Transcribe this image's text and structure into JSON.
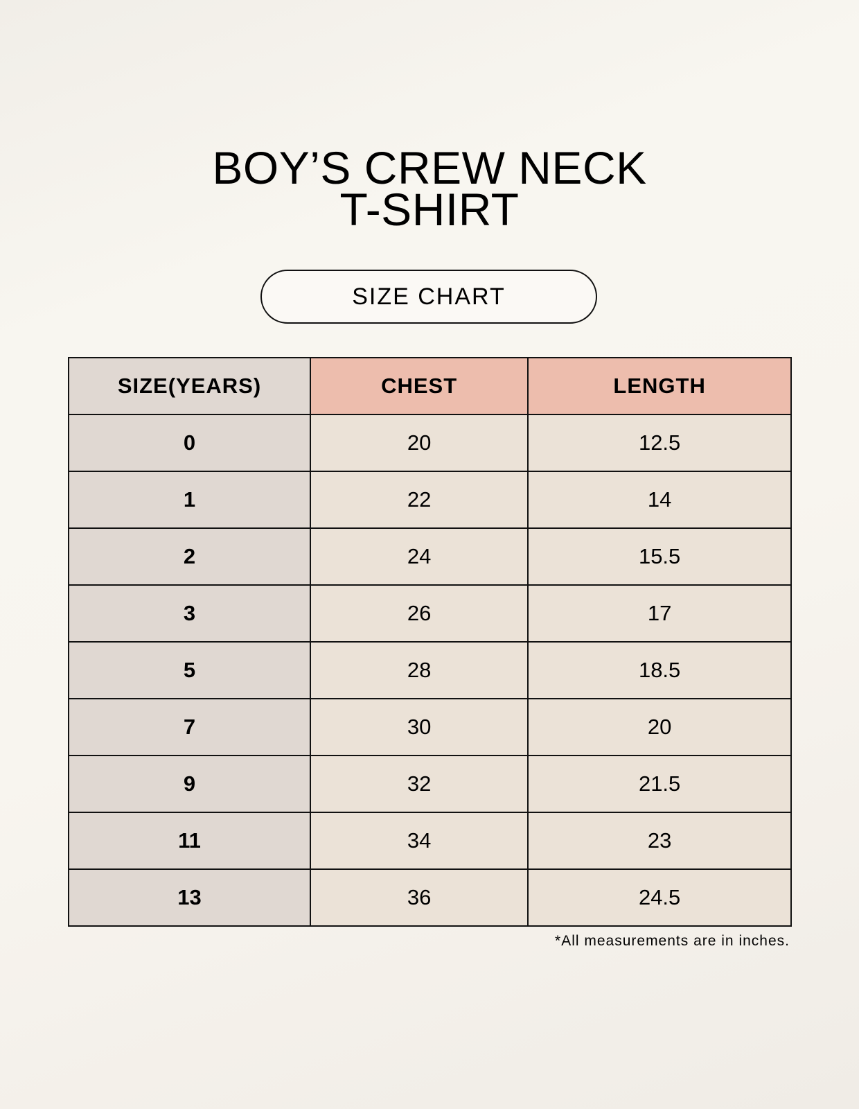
{
  "title": {
    "line1": "BOY’S CREW NECK",
    "line2": "T-SHIRT"
  },
  "subtitle": "SIZE CHART",
  "table": {
    "headers": [
      "SIZE(YEARS)",
      "CHEST",
      "LENGTH"
    ],
    "rows": [
      [
        "0",
        "20",
        "12.5"
      ],
      [
        "1",
        "22",
        "14"
      ],
      [
        "2",
        "24",
        "15.5"
      ],
      [
        "3",
        "26",
        "17"
      ],
      [
        "5",
        "28",
        "18.5"
      ],
      [
        "7",
        "30",
        "20"
      ],
      [
        "9",
        "32",
        "21.5"
      ],
      [
        "11",
        "34",
        "23"
      ],
      [
        "13",
        "36",
        "24.5"
      ]
    ]
  },
  "footnote": "*All measurements are in inches.",
  "colors": {
    "header_accent": "#edbdad",
    "size_column": "#e0d8d2",
    "cell": "#ebe2d7"
  }
}
